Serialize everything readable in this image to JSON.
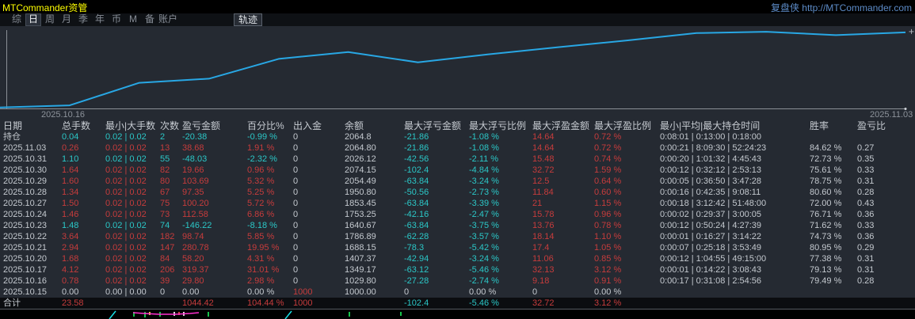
{
  "title_bar": {
    "app_title": "MTCommander资管",
    "brand": "复盘侠 http://MTCommander.com"
  },
  "tab_bar": {
    "tabs": [
      {
        "key": "overview",
        "label": "综",
        "active": false
      },
      {
        "key": "day",
        "label": "日",
        "active": true
      },
      {
        "key": "week",
        "label": "周",
        "active": false
      },
      {
        "key": "month",
        "label": "月",
        "active": false
      },
      {
        "key": "quarter",
        "label": "季",
        "active": false
      },
      {
        "key": "year",
        "label": "年",
        "active": false
      },
      {
        "key": "currency",
        "label": "币",
        "active": false
      },
      {
        "key": "m",
        "label": "M",
        "active": false
      },
      {
        "key": "note",
        "label": "备",
        "active": false
      },
      {
        "key": "account",
        "label": "账户",
        "active": false
      }
    ],
    "trajectory_button": "轨迹"
  },
  "chart_data": {
    "type": "line",
    "x": [
      "2025.10.15",
      "2025.10.16",
      "2025.10.17",
      "2025.10.20",
      "2025.10.21",
      "2025.10.22",
      "2025.10.23",
      "2025.10.24",
      "2025.10.27",
      "2025.10.28",
      "2025.10.29",
      "2025.10.30",
      "2025.10.31",
      "2025.11.03"
    ],
    "values": [
      1000.0,
      1029.8,
      1349.17,
      1407.37,
      1688.15,
      1786.89,
      1640.67,
      1753.25,
      1853.45,
      1950.8,
      2054.49,
      2074.15,
      2026.12,
      2064.8
    ],
    "x_start_label": "2025.10.16",
    "x_end_label": "2025.11.03",
    "ylim": [
      980,
      2120
    ],
    "grid": false,
    "legend": false,
    "line_color": "#28a7e4",
    "axis_color": "#8a8f96"
  },
  "table": {
    "columns": [
      "日期",
      "总手数",
      "最小|大手数",
      "次数",
      "盈亏金额",
      "百分比%",
      "出入金",
      "余额",
      "最大浮亏金额",
      "最大浮亏比例",
      "最大浮盈金额",
      "最大浮盈比例",
      "最小|平均|最大持仓时间",
      "胜率",
      "盈亏比"
    ],
    "column_keys": [
      "date",
      "total-lots",
      "min-max-lots",
      "count",
      "pnl",
      "pct",
      "cash-flow",
      "balance",
      "max-float-loss",
      "max-float-loss-pct",
      "max-float-profit",
      "max-float-profit-pct",
      "holding-time",
      "win-rate",
      "pl-ratio"
    ],
    "rows": [
      {
        "cells": [
          "持仓",
          "0.04",
          "0.02 | 0.02",
          "2",
          "-20.38",
          "-0.99 %",
          "0",
          "2064.8",
          "-21.86",
          "-1.08 %",
          "14.64",
          "0.72 %",
          "0:08:01 | 0:13:00 | 0:18:00",
          "",
          ""
        ],
        "colors": "wgggggwwggrrwww",
        "total": false
      },
      {
        "cells": [
          "2025.11.03",
          "0.26",
          "0.02 | 0.02",
          "13",
          "38.68",
          "1.91 %",
          "0",
          "2064.80",
          "-21.86",
          "-1.08 %",
          "14.64",
          "0.72 %",
          "0:00:21 | 8:09:30 | 52:24:23",
          "84.62 %",
          "0.27"
        ],
        "colors": "wrrrrrwwggrrwww",
        "total": false
      },
      {
        "cells": [
          "2025.10.31",
          "1.10",
          "0.02 | 0.02",
          "55",
          "-48.03",
          "-2.32 %",
          "0",
          "2026.12",
          "-42.56",
          "-2.11 %",
          "15.48",
          "0.74 %",
          "0:00:20 | 1:01:32 | 4:45:43",
          "72.73 %",
          "0.35"
        ],
        "colors": "wgggggwwggrrwww",
        "total": false
      },
      {
        "cells": [
          "2025.10.30",
          "1.64",
          "0.02 | 0.02",
          "82",
          "19.66",
          "0.96 %",
          "0",
          "2074.15",
          "-102.4",
          "-4.84 %",
          "32.72",
          "1.59 %",
          "0:00:12 | 0:32:12 | 2:53:13",
          "75.61 %",
          "0.33"
        ],
        "colors": "wrrrrrwwggrrwww",
        "total": false
      },
      {
        "cells": [
          "2025.10.29",
          "1.60",
          "0.02 | 0.02",
          "80",
          "103.69",
          "5.32 %",
          "0",
          "2054.49",
          "-63.84",
          "-3.24 %",
          "12.5",
          "0.64 %",
          "0:00:05 | 0:36:50 | 3:47:28",
          "78.75 %",
          "0.31"
        ],
        "colors": "wrrrrrwwggrrwww",
        "total": false
      },
      {
        "cells": [
          "2025.10.28",
          "1.34",
          "0.02 | 0.02",
          "67",
          "97.35",
          "5.25 %",
          "0",
          "1950.80",
          "-50.56",
          "-2.73 %",
          "11.84",
          "0.60 %",
          "0:00:16 | 0:42:35 | 9:08:11",
          "80.60 %",
          "0.28"
        ],
        "colors": "wrrrrrwwggrrwww",
        "total": false
      },
      {
        "cells": [
          "2025.10.27",
          "1.50",
          "0.02 | 0.02",
          "75",
          "100.20",
          "5.72 %",
          "0",
          "1853.45",
          "-63.84",
          "-3.39 %",
          "21",
          "1.15 %",
          "0:00:18 | 3:12:42 | 51:48:00",
          "72.00 %",
          "0.43"
        ],
        "colors": "wrrrrrwwggrrwww",
        "total": false
      },
      {
        "cells": [
          "2025.10.24",
          "1.46",
          "0.02 | 0.02",
          "73",
          "112.58",
          "6.86 %",
          "0",
          "1753.25",
          "-42.16",
          "-2.47 %",
          "15.78",
          "0.96 %",
          "0:00:02 | 0:29:37 | 3:00:05",
          "76.71 %",
          "0.36"
        ],
        "colors": "wrrrrrwwggrrwww",
        "total": false
      },
      {
        "cells": [
          "2025.10.23",
          "1.48",
          "0.02 | 0.02",
          "74",
          "-146.22",
          "-8.18 %",
          "0",
          "1640.67",
          "-63.84",
          "-3.75 %",
          "13.76",
          "0.78 %",
          "0:00:12 | 0:50:24 | 4:27:39",
          "71.62 %",
          "0.33"
        ],
        "colors": "wgggggwwggrrwww",
        "total": false
      },
      {
        "cells": [
          "2025.10.22",
          "3.64",
          "0.02 | 0.02",
          "182",
          "98.74",
          "5.85 %",
          "0",
          "1786.89",
          "-62.28",
          "-3.57 %",
          "18.14",
          "1.10 %",
          "0:00:01 | 0:16:27 | 3:14:22",
          "74.73 %",
          "0.36"
        ],
        "colors": "wrrrrrwwggrrwww",
        "total": false
      },
      {
        "cells": [
          "2025.10.21",
          "2.94",
          "0.02 | 0.02",
          "147",
          "280.78",
          "19.95 %",
          "0",
          "1688.15",
          "-78.3",
          "-5.42 %",
          "17.4",
          "1.05 %",
          "0:00:07 | 0:25:18 | 3:53:49",
          "80.95 %",
          "0.29"
        ],
        "colors": "wrrrrrwwggrrwww",
        "total": false
      },
      {
        "cells": [
          "2025.10.20",
          "1.68",
          "0.02 | 0.02",
          "84",
          "58.20",
          "4.31 %",
          "0",
          "1407.37",
          "-42.94",
          "-3.24 %",
          "11.06",
          "0.85 %",
          "0:00:12 | 1:04:55 | 49:15:00",
          "77.38 %",
          "0.31"
        ],
        "colors": "wrrrrrwwggrrwww",
        "total": false
      },
      {
        "cells": [
          "2025.10.17",
          "4.12",
          "0.02 | 0.02",
          "206",
          "319.37",
          "31.01 %",
          "0",
          "1349.17",
          "-63.12",
          "-5.46 %",
          "32.13",
          "3.12 %",
          "0:00:01 | 0:14:22 | 3:08:43",
          "79.13 %",
          "0.31"
        ],
        "colors": "wrrrrrwwggrrwww",
        "total": false
      },
      {
        "cells": [
          "2025.10.16",
          "0.78",
          "0.02 | 0.02",
          "39",
          "29.80",
          "2.98 %",
          "0",
          "1029.80",
          "-27.28",
          "-2.74 %",
          "9.18",
          "0.91 %",
          "0:00:17 | 0:31:08 | 2:54:56",
          "79.49 %",
          "0.28"
        ],
        "colors": "wrrrrrwwggrrwww",
        "total": false
      },
      {
        "cells": [
          "2025.10.15",
          "0.00",
          "0.00 | 0.00",
          "0",
          "0.00",
          "0.00 %",
          "1000",
          "1000.00",
          "0",
          "0.00 %",
          "0",
          "0.00 %",
          "",
          "",
          ""
        ],
        "colors": "wwwwwwrwwwwwwww",
        "total": false
      },
      {
        "cells": [
          "合计",
          "23.58",
          "",
          "",
          "1044.42",
          "104.44 %",
          "1000",
          "",
          "-102.4",
          "-5.46 %",
          "32.72",
          "3.12 %",
          "",
          "",
          ""
        ],
        "colors": "wrrrrrrwggrrwww",
        "total": true
      }
    ]
  },
  "colors": {
    "profit_red": "#c63c3c",
    "loss_teal": "#2bc7c7",
    "text": "#c4c9cf",
    "title_yellow": "#ffff00",
    "brand_blue": "#5d8cc8"
  },
  "bottom_strip": {
    "marks": [
      {
        "type": "diag",
        "x": 142,
        "color": "#19e0e6"
      },
      {
        "type": "bar",
        "x": 168,
        "h": 6,
        "color": "#17c24a"
      },
      {
        "type": "bar",
        "x": 182,
        "h": 7,
        "color": "#17c24a"
      },
      {
        "type": "bar",
        "x": 188,
        "h": 4,
        "color": "#e0d33a"
      },
      {
        "type": "bar",
        "x": 201,
        "h": 6,
        "color": "#17c24a"
      },
      {
        "type": "bar",
        "x": 219,
        "h": 5,
        "color": "#dcdcdc"
      },
      {
        "type": "bar",
        "x": 225,
        "h": 4,
        "color": "#cf4545"
      },
      {
        "type": "bar",
        "x": 231,
        "h": 5,
        "color": "#dcdcdc"
      },
      {
        "type": "bar",
        "x": 262,
        "h": 6,
        "color": "#17c24a"
      },
      {
        "type": "diag",
        "x": 364,
        "color": "#19e0e6"
      },
      {
        "type": "bar",
        "x": 440,
        "h": 6,
        "color": "#17c24a"
      },
      {
        "type": "bar",
        "x": 505,
        "h": 5,
        "color": "#17c24a"
      }
    ],
    "magenta_line": [
      [
        168,
        3
      ],
      [
        182,
        4
      ],
      [
        200,
        5
      ],
      [
        222,
        5
      ],
      [
        240,
        4
      ],
      [
        251,
        3
      ]
    ],
    "magenta_color": "#ff2fd0"
  }
}
